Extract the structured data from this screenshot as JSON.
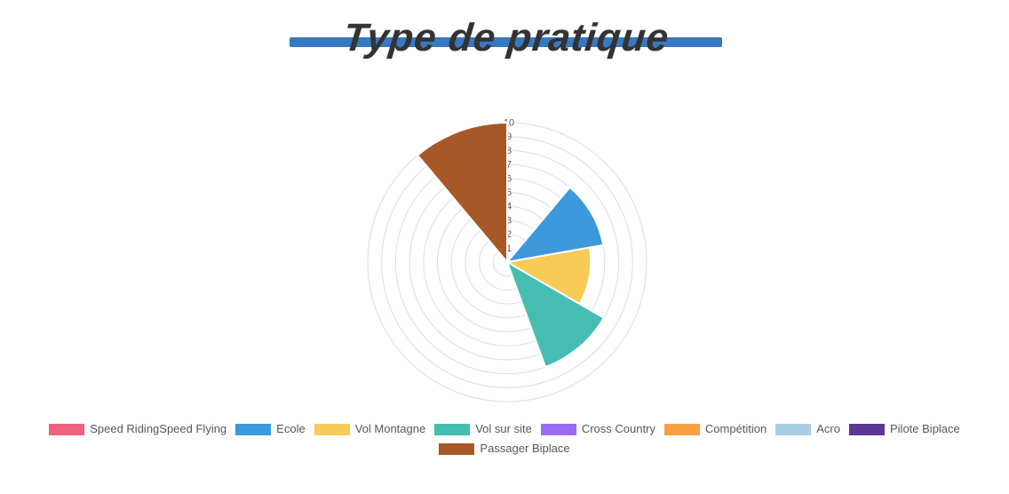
{
  "title": {
    "text": "Type de pratique",
    "bar_color": "#3679C2",
    "text_color": "#333333"
  },
  "chart_data": {
    "type": "polarArea",
    "title": "Type de pratique",
    "categories": [
      "Speed Riding / Speed Flying",
      "Ecole",
      "Vol Montagne",
      "Vol sur site",
      "Cross Country",
      "Compétition",
      "Acro",
      "Pilote Biplace",
      "Passager Biplace"
    ],
    "values": [
      0,
      7,
      6,
      8,
      0,
      0,
      0,
      0,
      10
    ],
    "colors": [
      "#F0617F",
      "#3D98DC",
      "#F7CB55",
      "#45BDB2",
      "#9B6CF1",
      "#F6A142",
      "#A9CEE3",
      "#5C3794",
      "#A65827"
    ],
    "rlim": [
      0,
      10
    ],
    "tick_values": [
      1,
      2,
      3,
      4,
      5,
      6,
      7,
      8,
      9,
      10
    ],
    "sector_angle_deg": 40,
    "start_angle_deg": 0,
    "direction": "clockwise-from-top",
    "grid": "concentric-circles",
    "ring_color": "#DEDEDE",
    "tick_color": "#555555",
    "sector_border_color": "#FFFFFF",
    "legend_position": "bottom"
  },
  "legend": {
    "rows": [
      [
        {
          "label": "Speed Riding",
          "swatch": "#F0617F"
        },
        {
          "label": "Speed Flying",
          "swatch": null
        },
        {
          "label": "Ecole",
          "swatch": "#3D98DC"
        },
        {
          "label": "Vol Montagne",
          "swatch": "#F7CB55"
        },
        {
          "label": "Vol sur site",
          "swatch": "#45BDB2"
        },
        {
          "label": "Cross Country",
          "swatch": "#9B6CF1"
        },
        {
          "label": "Compétition",
          "swatch": "#F6A142"
        },
        {
          "label": "Acro",
          "swatch": "#A9CEE3"
        },
        {
          "label": "Pilote Biplace",
          "swatch": "#5C3794"
        }
      ],
      [
        {
          "label": "Passager Biplace",
          "swatch": "#A65827"
        }
      ]
    ]
  }
}
